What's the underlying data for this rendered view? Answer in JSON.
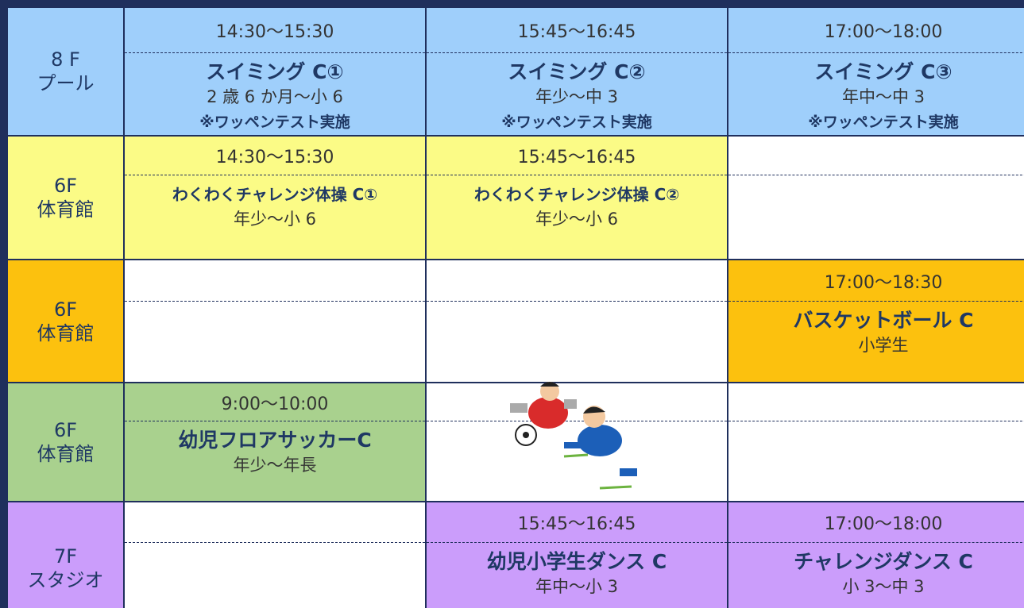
{
  "rows": [
    {
      "label": [
        "8 F",
        "プール"
      ],
      "cells": [
        {
          "time": "14:30〜15:30",
          "title": "スイミング C①",
          "lines": [
            "2 歳 6 か月〜小 6"
          ],
          "note": "※ワッペンテスト実施"
        },
        {
          "time": "15:45〜16:45",
          "title": "スイミング C②",
          "lines": [
            "年少〜中 3"
          ],
          "note": "※ワッペンテスト実施"
        },
        {
          "time": "17:00〜18:00",
          "title": "スイミング C③",
          "lines": [
            "年中〜中 3"
          ],
          "note": "※ワッペンテスト実施"
        }
      ]
    },
    {
      "label": [
        "6F",
        "体育館"
      ],
      "cells": [
        {
          "time": "14:30〜15:30",
          "title": "わくわくチャレンジ体操 C①",
          "lines": [
            "年少〜小 6"
          ]
        },
        {
          "time": "15:45〜16:45",
          "title": "わくわくチャレンジ体操 C②",
          "lines": [
            "年少〜小 6"
          ]
        },
        null
      ]
    },
    {
      "label": [
        "6F",
        "体育館"
      ],
      "cells": [
        null,
        null,
        {
          "time": "17:00〜18:30",
          "title": "バスケットボール C",
          "lines": [
            "小学生"
          ]
        }
      ]
    },
    {
      "label": [
        "6F",
        "体育館"
      ],
      "cells": [
        {
          "time": "9:00〜10:00",
          "title": "幼児フロアサッカーC",
          "lines": [
            "年少〜年長"
          ]
        },
        null,
        null
      ]
    },
    {
      "label": [
        "7F",
        "スタジオ"
      ],
      "cells": [
        null,
        {
          "time": "15:45〜16:45",
          "title": "幼児小学生ダンス C",
          "lines": [
            "年中〜小 3"
          ]
        },
        {
          "time": "17:00〜18:00",
          "title": "チャレンジダンス C",
          "lines": [
            "小 3〜中 3"
          ]
        }
      ]
    }
  ]
}
